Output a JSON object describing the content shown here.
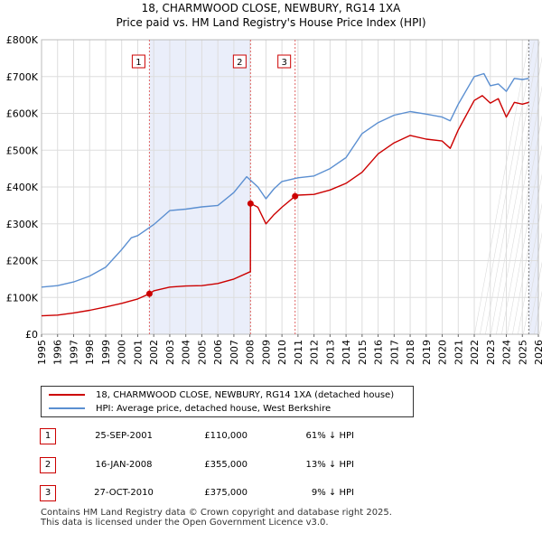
{
  "title_line1": "18, CHARMWOOD CLOSE, NEWBURY, RG14 1XA",
  "title_line2": "Price paid vs. HM Land Registry's House Price Index (HPI)",
  "chart_data": {
    "type": "line",
    "title": "18, CHARMWOOD CLOSE, NEWBURY, RG14 1XA — Price paid vs. HM Land Registry's House Price Index (HPI)",
    "xlabel": "",
    "ylabel": "",
    "xlim": [
      1995,
      2026
    ],
    "ylim": [
      0,
      800000
    ],
    "x_ticks": [
      "1995",
      "1996",
      "1997",
      "1998",
      "1999",
      "2000",
      "2001",
      "2002",
      "2003",
      "2004",
      "2005",
      "2006",
      "2007",
      "2008",
      "2009",
      "2010",
      "2011",
      "2012",
      "2013",
      "2014",
      "2015",
      "2016",
      "2017",
      "2018",
      "2019",
      "2020",
      "2021",
      "2022",
      "2023",
      "2024",
      "2025",
      "2026"
    ],
    "y_ticks": [
      {
        "value": 0,
        "label": "£0"
      },
      {
        "value": 100000,
        "label": "£100K"
      },
      {
        "value": 200000,
        "label": "£200K"
      },
      {
        "value": 300000,
        "label": "£300K"
      },
      {
        "value": 400000,
        "label": "£400K"
      },
      {
        "value": 500000,
        "label": "£500K"
      },
      {
        "value": 600000,
        "label": "£600K"
      },
      {
        "value": 700000,
        "label": "£700K"
      },
      {
        "value": 800000,
        "label": "£800K"
      }
    ],
    "series": [
      {
        "name": "18, CHARMWOOD CLOSE, NEWBURY, RG14 1XA (detached house)",
        "color": "#cc0000",
        "x": [
          1995,
          1996,
          1997,
          1998,
          1999,
          2000,
          2001,
          2001.73,
          2002,
          2003,
          2004,
          2005,
          2006,
          2007,
          2008.03,
          2008.04,
          2008.5,
          2009,
          2009.5,
          2010,
          2010.82,
          2011,
          2012,
          2013,
          2014,
          2015,
          2016,
          2017,
          2018,
          2019,
          2020,
          2020.5,
          2021,
          2022,
          2022.5,
          2023,
          2023.5,
          2024,
          2024.5,
          2025,
          2025.4
        ],
        "values": [
          50000,
          52000,
          58000,
          65000,
          74000,
          84000,
          96000,
          110000,
          118000,
          128000,
          131000,
          132000,
          138000,
          150000,
          170000,
          355000,
          345000,
          300000,
          325000,
          345000,
          375000,
          378000,
          380000,
          392000,
          410000,
          440000,
          490000,
          520000,
          540000,
          530000,
          525000,
          505000,
          555000,
          635000,
          648000,
          628000,
          640000,
          590000,
          630000,
          625000,
          630000
        ]
      },
      {
        "name": "HPI: Average price, detached house, West Berkshire",
        "color": "#5b8fd1",
        "x": [
          1995,
          1996,
          1997,
          1998,
          1999,
          2000,
          2000.6,
          2001,
          2002,
          2003,
          2004,
          2005,
          2006,
          2007,
          2007.8,
          2008.5,
          2009,
          2009.5,
          2010,
          2011,
          2012,
          2013,
          2014,
          2015,
          2016,
          2017,
          2018,
          2019,
          2020,
          2020.5,
          2021,
          2022,
          2022.6,
          2023,
          2023.5,
          2024,
          2024.5,
          2025,
          2025.4
        ],
        "values": [
          128000,
          132000,
          142000,
          158000,
          182000,
          230000,
          262000,
          268000,
          298000,
          336000,
          340000,
          346000,
          350000,
          385000,
          428000,
          400000,
          368000,
          395000,
          415000,
          425000,
          430000,
          450000,
          480000,
          545000,
          575000,
          595000,
          605000,
          598000,
          590000,
          580000,
          625000,
          700000,
          708000,
          675000,
          680000,
          660000,
          695000,
          692000,
          695000
        ]
      }
    ],
    "transactions": [
      {
        "num": "1",
        "x": 2001.73,
        "value": 110000
      },
      {
        "num": "2",
        "x": 2008.04,
        "value": 355000
      },
      {
        "num": "3",
        "x": 2010.82,
        "value": 375000
      }
    ],
    "shaded_regions": [
      [
        2001.73,
        2008.04
      ],
      [
        2010.82,
        2010.82
      ],
      [
        2025.4,
        2026
      ]
    ],
    "legend_position": "below"
  },
  "legend": {
    "items": [
      {
        "label": "18, CHARMWOOD CLOSE, NEWBURY, RG14 1XA (detached house)",
        "color": "#cc0000"
      },
      {
        "label": "HPI: Average price, detached house, West Berkshire",
        "color": "#5b8fd1"
      }
    ]
  },
  "transactions_table": [
    {
      "num": "1",
      "date": "25-SEP-2001",
      "price": "£110,000",
      "delta": "61% ↓ HPI"
    },
    {
      "num": "2",
      "date": "16-JAN-2008",
      "price": "£355,000",
      "delta": "13% ↓ HPI"
    },
    {
      "num": "3",
      "date": "27-OCT-2010",
      "price": "£375,000",
      "delta": "9% ↓ HPI"
    }
  ],
  "footer": {
    "line1": "Contains HM Land Registry data © Crown copyright and database right 2025.",
    "line2": "This data is licensed under the Open Government Licence v3.0."
  }
}
